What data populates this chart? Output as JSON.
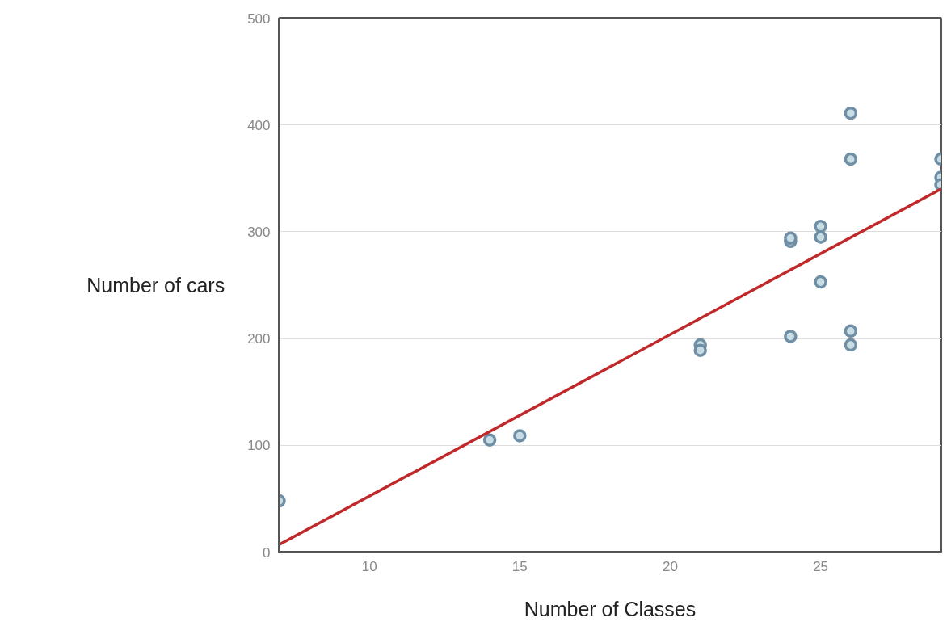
{
  "chart_data": {
    "type": "scatter",
    "xlabel": "Number of Classes",
    "ylabel": "Number of cars",
    "xlim": [
      7,
      29
    ],
    "xticks": [
      10,
      15,
      20,
      25
    ],
    "ylim": [
      0,
      500
    ],
    "yticks": [
      0,
      100,
      200,
      300,
      400,
      500
    ],
    "grid": "y",
    "series": [
      {
        "marker": "circle",
        "color": "#6f8fa6",
        "x": [
          7,
          14,
          15,
          21,
          21,
          24,
          24,
          24,
          25,
          25,
          25,
          26,
          26,
          26,
          26,
          29,
          29,
          29
        ],
        "values": [
          48,
          105,
          109,
          194,
          189,
          202,
          291,
          294,
          305,
          295,
          253,
          411,
          368,
          207,
          194,
          368,
          351,
          344
        ]
      },
      {
        "type": "line",
        "color": "#c0282a",
        "x": [
          7,
          29
        ],
        "values": [
          7,
          340
        ]
      }
    ]
  }
}
